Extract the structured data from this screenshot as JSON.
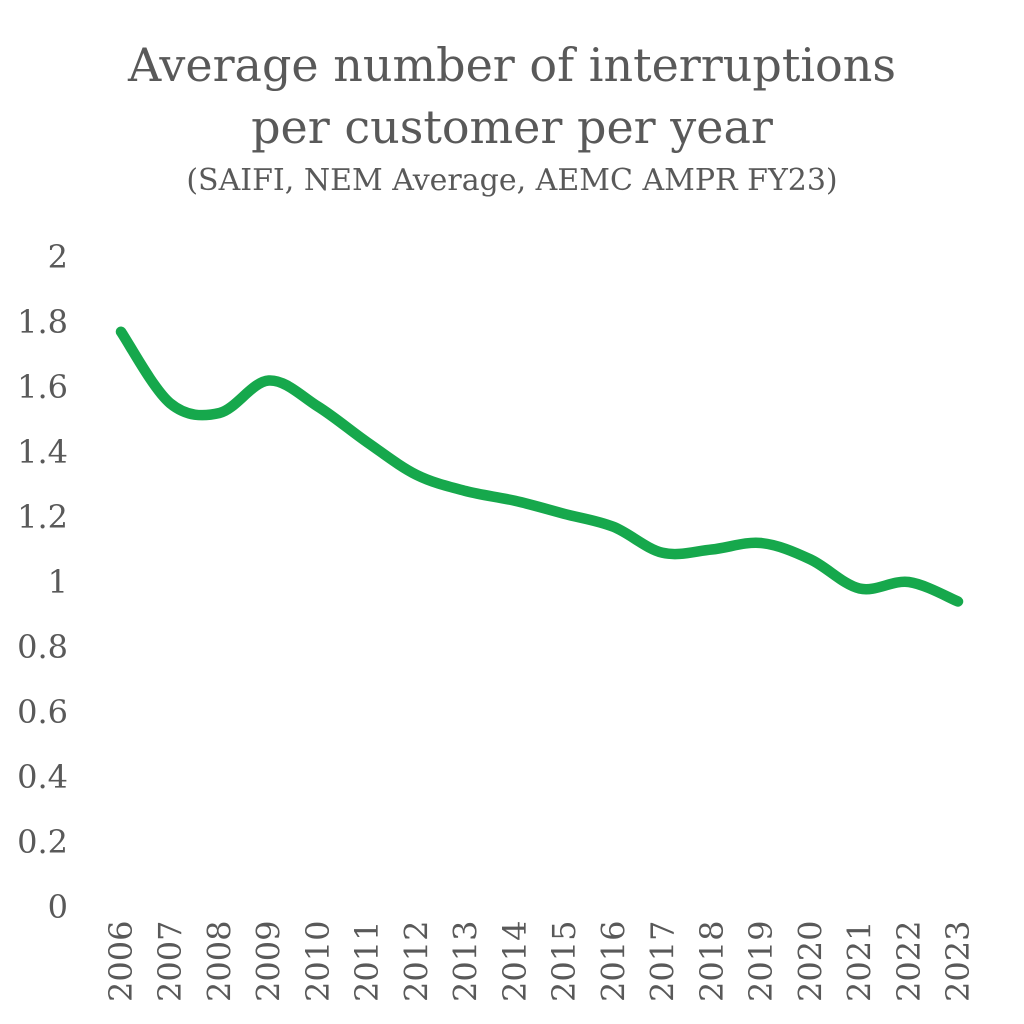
{
  "title": {
    "line1": "Average number of interruptions",
    "line2": "per customer per year",
    "subtitle": "(SAIFI, NEM Average, AEMC AMPR FY23)"
  },
  "chart_data": {
    "type": "line",
    "title": "Average number of interruptions per customer per year",
    "subtitle": "(SAIFI, NEM Average, AEMC AMPR FY23)",
    "categories": [
      "2006",
      "2007",
      "2008",
      "2009",
      "2010",
      "2011",
      "2012",
      "2013",
      "2014",
      "2015",
      "2016",
      "2017",
      "2018",
      "2019",
      "2020",
      "2021",
      "2022",
      "2023"
    ],
    "values": [
      1.77,
      1.55,
      1.52,
      1.62,
      1.54,
      1.43,
      1.33,
      1.28,
      1.25,
      1.21,
      1.17,
      1.09,
      1.1,
      1.12,
      1.07,
      0.98,
      1.0,
      0.94
    ],
    "xlabel": "",
    "ylabel": "",
    "ylim": [
      0,
      2
    ],
    "y_ticks": [
      2,
      1.8,
      1.6,
      1.4,
      1.2,
      1,
      0.8,
      0.6,
      0.4,
      0.2,
      0
    ],
    "y_tick_labels": [
      "2",
      "1.8",
      "1.6",
      "1.4",
      "1.2",
      "1",
      "0.8",
      "0.6",
      "0.4",
      "0.2",
      "0"
    ],
    "grid": false,
    "legend": false,
    "smooth": true,
    "line_color": "#16A84C",
    "text_color": "#595959"
  }
}
